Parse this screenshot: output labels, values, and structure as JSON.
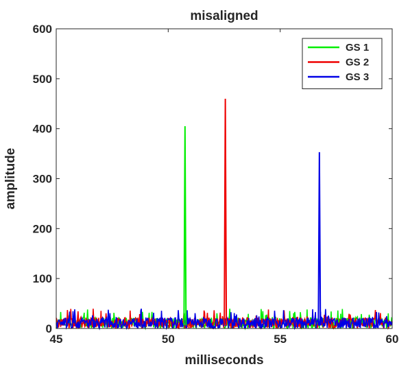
{
  "chart_data": {
    "type": "line",
    "title": "misaligned",
    "xlabel": "milliseconds",
    "ylabel": "amplitude",
    "xlim": [
      45,
      60
    ],
    "ylim": [
      0,
      600
    ],
    "xticks": [
      "45",
      "50",
      "55",
      "60"
    ],
    "yticks": [
      "0",
      "100",
      "200",
      "300",
      "400",
      "500",
      "600"
    ],
    "grid": false,
    "legend_position": "top-right",
    "noise_floor_max": 40,
    "series": [
      {
        "name": "GS 1",
        "color": "#00ee00",
        "peak_x": 50.75,
        "peak_y": 405
      },
      {
        "name": "GS 2",
        "color": "#ee0000",
        "peak_x": 52.55,
        "peak_y": 460
      },
      {
        "name": "GS 3",
        "color": "#0000e6",
        "peak_x": 56.75,
        "peak_y": 353
      }
    ]
  }
}
